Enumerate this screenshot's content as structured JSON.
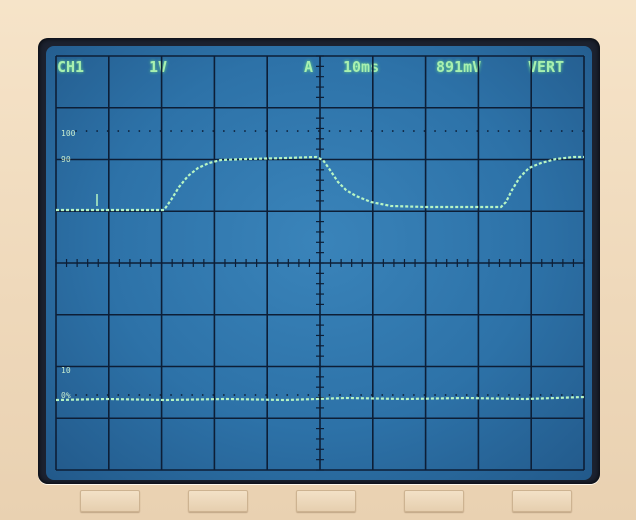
{
  "readout": {
    "channel": "CH1",
    "volts_per_div": "1V",
    "trigger": "A",
    "time_per_div": "10ms",
    "measurement": "891mV",
    "mode": "VERT"
  },
  "scale_labels": {
    "p100": "100",
    "p90": "90",
    "p10": "10",
    "p0": "0%"
  },
  "colors": {
    "trace": "#b7f5c4",
    "grid": "#0d1e36",
    "screen": "#2d72a8",
    "text": "#a8f0b0"
  },
  "softkeys": [
    "",
    "",
    "",
    "",
    ""
  ]
}
